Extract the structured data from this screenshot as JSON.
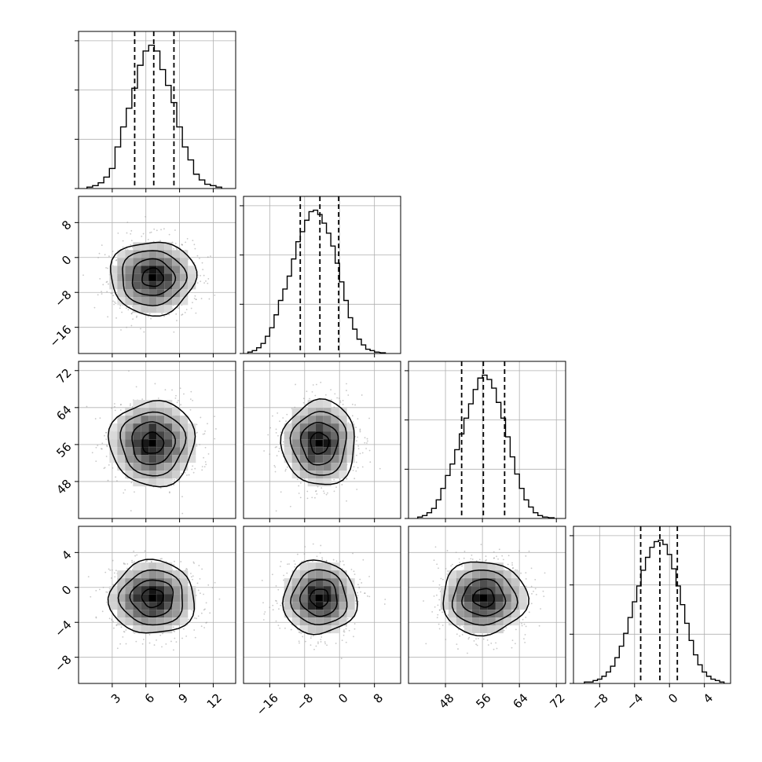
{
  "chart_data": {
    "type": "corner",
    "title": "",
    "grid": true,
    "params": [
      {
        "index": 0,
        "range": [
          0,
          14
        ],
        "ticks": [
          3,
          6,
          9,
          12
        ],
        "tick_labels": [
          "3",
          "6",
          "9",
          "12"
        ],
        "quantiles": [
          5.0,
          6.7,
          8.5
        ],
        "hist_peak": 1.0,
        "hist": [
          {
            "x": 1.0,
            "y": 0.01
          },
          {
            "x": 1.5,
            "y": 0.02
          },
          {
            "x": 2.0,
            "y": 0.04
          },
          {
            "x": 2.5,
            "y": 0.08
          },
          {
            "x": 3.0,
            "y": 0.14
          },
          {
            "x": 3.5,
            "y": 0.29
          },
          {
            "x": 4.0,
            "y": 0.43
          },
          {
            "x": 4.5,
            "y": 0.56
          },
          {
            "x": 5.0,
            "y": 0.7
          },
          {
            "x": 5.5,
            "y": 0.86
          },
          {
            "x": 6.0,
            "y": 0.96
          },
          {
            "x": 6.5,
            "y": 1.0
          },
          {
            "x": 7.0,
            "y": 0.96
          },
          {
            "x": 7.5,
            "y": 0.83
          },
          {
            "x": 8.0,
            "y": 0.72
          },
          {
            "x": 8.5,
            "y": 0.6
          },
          {
            "x": 9.0,
            "y": 0.43
          },
          {
            "x": 9.5,
            "y": 0.29
          },
          {
            "x": 10.0,
            "y": 0.2
          },
          {
            "x": 10.5,
            "y": 0.1
          },
          {
            "x": 11.0,
            "y": 0.06
          },
          {
            "x": 11.5,
            "y": 0.03
          },
          {
            "x": 12.0,
            "y": 0.02
          },
          {
            "x": 12.5,
            "y": 0.01
          }
        ]
      },
      {
        "index": 1,
        "range": [
          -22,
          14
        ],
        "ticks": [
          -16,
          -8,
          0,
          8
        ],
        "tick_labels": [
          "−16",
          "−8",
          "0",
          "8"
        ],
        "quantiles": [
          -9.0,
          -4.5,
          -0.2
        ],
        "hist_peak": 1.0,
        "hist": [
          {
            "x": -20.5,
            "y": 0.01
          },
          {
            "x": -19.5,
            "y": 0.02
          },
          {
            "x": -18.5,
            "y": 0.04
          },
          {
            "x": -17.5,
            "y": 0.07
          },
          {
            "x": -16.5,
            "y": 0.12
          },
          {
            "x": -15.5,
            "y": 0.18
          },
          {
            "x": -14.5,
            "y": 0.27
          },
          {
            "x": -13.5,
            "y": 0.37
          },
          {
            "x": -12.5,
            "y": 0.45
          },
          {
            "x": -11.5,
            "y": 0.54
          },
          {
            "x": -10.5,
            "y": 0.66
          },
          {
            "x": -9.5,
            "y": 0.78
          },
          {
            "x": -8.5,
            "y": 0.85
          },
          {
            "x": -7.5,
            "y": 0.93
          },
          {
            "x": -6.5,
            "y": 0.99
          },
          {
            "x": -5.5,
            "y": 1.0
          },
          {
            "x": -4.5,
            "y": 0.97
          },
          {
            "x": -3.5,
            "y": 0.91
          },
          {
            "x": -2.5,
            "y": 0.84
          },
          {
            "x": -1.5,
            "y": 0.75
          },
          {
            "x": -0.5,
            "y": 0.63
          },
          {
            "x": 0.5,
            "y": 0.5
          },
          {
            "x": 1.5,
            "y": 0.37
          },
          {
            "x": 2.5,
            "y": 0.25
          },
          {
            "x": 3.5,
            "y": 0.17
          },
          {
            "x": 4.5,
            "y": 0.1
          },
          {
            "x": 5.5,
            "y": 0.06
          },
          {
            "x": 6.5,
            "y": 0.03
          },
          {
            "x": 7.5,
            "y": 0.02
          },
          {
            "x": 8.5,
            "y": 0.01
          },
          {
            "x": 10.0,
            "y": 0.005
          }
        ]
      },
      {
        "index": 2,
        "range": [
          40,
          74
        ],
        "ticks": [
          48,
          56,
          64,
          72
        ],
        "tick_labels": [
          "48",
          "56",
          "64",
          "72"
        ],
        "quantiles": [
          51.5,
          56.2,
          60.8
        ],
        "hist_peak": 1.0,
        "hist": [
          {
            "x": 42.5,
            "y": 0.01
          },
          {
            "x": 43.5,
            "y": 0.02
          },
          {
            "x": 44.5,
            "y": 0.04
          },
          {
            "x": 45.5,
            "y": 0.07
          },
          {
            "x": 46.5,
            "y": 0.13
          },
          {
            "x": 47.5,
            "y": 0.21
          },
          {
            "x": 48.5,
            "y": 0.3
          },
          {
            "x": 49.5,
            "y": 0.38
          },
          {
            "x": 50.5,
            "y": 0.48
          },
          {
            "x": 51.5,
            "y": 0.59
          },
          {
            "x": 52.5,
            "y": 0.7
          },
          {
            "x": 53.5,
            "y": 0.8
          },
          {
            "x": 54.5,
            "y": 0.9
          },
          {
            "x": 55.5,
            "y": 0.98
          },
          {
            "x": 56.5,
            "y": 1.0
          },
          {
            "x": 57.5,
            "y": 0.97
          },
          {
            "x": 58.5,
            "y": 0.91
          },
          {
            "x": 59.5,
            "y": 0.81
          },
          {
            "x": 60.5,
            "y": 0.7
          },
          {
            "x": 61.5,
            "y": 0.57
          },
          {
            "x": 62.5,
            "y": 0.43
          },
          {
            "x": 63.5,
            "y": 0.31
          },
          {
            "x": 64.5,
            "y": 0.21
          },
          {
            "x": 65.5,
            "y": 0.13
          },
          {
            "x": 66.5,
            "y": 0.08
          },
          {
            "x": 67.5,
            "y": 0.04
          },
          {
            "x": 68.5,
            "y": 0.02
          },
          {
            "x": 69.5,
            "y": 0.01
          },
          {
            "x": 71.0,
            "y": 0.005
          }
        ]
      },
      {
        "index": 3,
        "range": [
          -11,
          7
        ],
        "ticks": [
          -8,
          -4,
          0,
          4
        ],
        "tick_labels": [
          "−8",
          "−4",
          "0",
          "4"
        ],
        "quantiles": [
          -3.3,
          -1.1,
          0.9
        ],
        "hist_peak": 1.0,
        "hist": [
          {
            "x": -9.5,
            "y": 0.01
          },
          {
            "x": -9.0,
            "y": 0.01
          },
          {
            "x": -8.5,
            "y": 0.02
          },
          {
            "x": -8.0,
            "y": 0.03
          },
          {
            "x": -7.5,
            "y": 0.05
          },
          {
            "x": -7.0,
            "y": 0.08
          },
          {
            "x": -6.5,
            "y": 0.12
          },
          {
            "x": -6.0,
            "y": 0.18
          },
          {
            "x": -5.5,
            "y": 0.26
          },
          {
            "x": -5.0,
            "y": 0.35
          },
          {
            "x": -4.5,
            "y": 0.46
          },
          {
            "x": -4.0,
            "y": 0.57
          },
          {
            "x": -3.5,
            "y": 0.68
          },
          {
            "x": -3.0,
            "y": 0.79
          },
          {
            "x": -2.5,
            "y": 0.88
          },
          {
            "x": -2.0,
            "y": 0.95
          },
          {
            "x": -1.5,
            "y": 0.99
          },
          {
            "x": -1.0,
            "y": 1.0
          },
          {
            "x": -0.5,
            "y": 0.97
          },
          {
            "x": 0.0,
            "y": 0.9
          },
          {
            "x": 0.5,
            "y": 0.8
          },
          {
            "x": 1.0,
            "y": 0.68
          },
          {
            "x": 1.5,
            "y": 0.55
          },
          {
            "x": 2.0,
            "y": 0.42
          },
          {
            "x": 2.5,
            "y": 0.3
          },
          {
            "x": 3.0,
            "y": 0.2
          },
          {
            "x": 3.5,
            "y": 0.13
          },
          {
            "x": 4.0,
            "y": 0.08
          },
          {
            "x": 4.5,
            "y": 0.05
          },
          {
            "x": 5.0,
            "y": 0.03
          },
          {
            "x": 5.5,
            "y": 0.02
          },
          {
            "x": 6.0,
            "y": 0.01
          }
        ]
      }
    ],
    "joint": [
      {
        "row": 1,
        "col": 0,
        "mean": [
          6.6,
          -4.6
        ],
        "sd": [
          1.9,
          4.2
        ],
        "rho": 0.0
      },
      {
        "row": 2,
        "col": 0,
        "mean": [
          6.6,
          56.3
        ],
        "sd": [
          1.9,
          4.6
        ],
        "rho": 0.0
      },
      {
        "row": 2,
        "col": 1,
        "mean": [
          -4.6,
          56.3
        ],
        "sd": [
          4.2,
          4.6
        ],
        "rho": 0.0
      },
      {
        "row": 3,
        "col": 0,
        "mean": [
          6.6,
          -1.2
        ],
        "sd": [
          1.9,
          2.1
        ],
        "rho": 0.0
      },
      {
        "row": 3,
        "col": 1,
        "mean": [
          -4.6,
          -1.2
        ],
        "sd": [
          4.2,
          2.1
        ],
        "rho": 0.0
      },
      {
        "row": 3,
        "col": 2,
        "mean": [
          56.3,
          -1.2
        ],
        "sd": [
          4.6,
          2.1
        ],
        "rho": 0.0
      }
    ],
    "contour_levels_sigma": [
      0.5,
      1.0,
      1.5,
      2.0
    ],
    "colors": {
      "line": "#000000",
      "grid": "#b0b0b0",
      "points": "#9a9a9a",
      "density_max": "#000000",
      "background": "#ffffff"
    }
  }
}
